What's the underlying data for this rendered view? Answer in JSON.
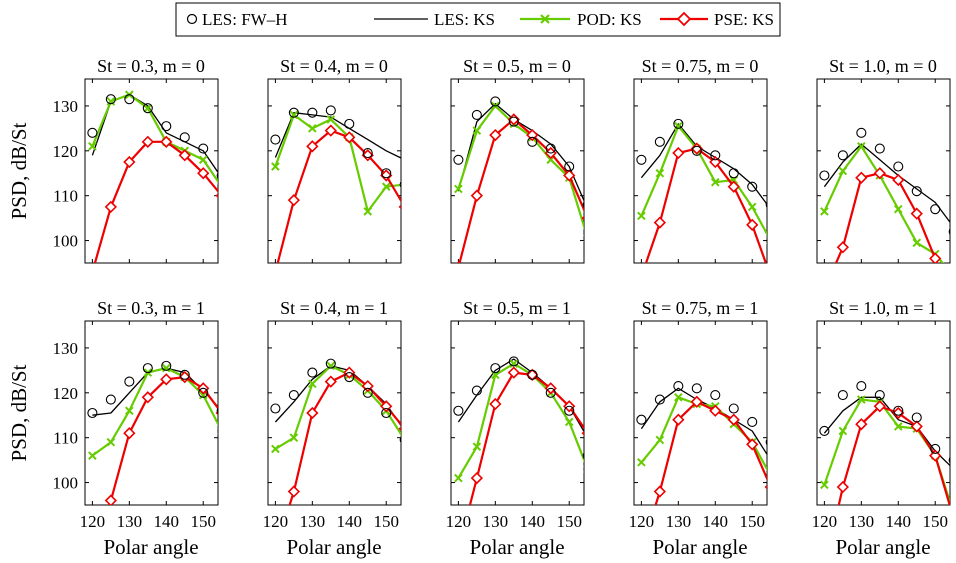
{
  "legend": {
    "entries": [
      {
        "label": "LES: FW–H",
        "key": "les_fwh"
      },
      {
        "label": "LES: KS",
        "key": "les_ks"
      },
      {
        "label": "POD: KS",
        "key": "pod_ks"
      },
      {
        "label": "PSE: KS",
        "key": "pse_ks"
      }
    ]
  },
  "colors": {
    "les_fwh": "#000000",
    "les_ks": "#000000",
    "pod_ks": "#66cc00",
    "pse_ks": "#ee0000"
  },
  "chart_data": {
    "type": "line",
    "xlabel": "Polar angle",
    "ylabel": "PSD, dB/St",
    "xlim": [
      118,
      154
    ],
    "ylim": [
      95,
      136
    ],
    "xticks": [
      120,
      130,
      140,
      150
    ],
    "yticks": [
      100,
      110,
      120,
      130
    ],
    "grid": false,
    "legend_position": "top",
    "panels": [
      {
        "title": "St = 0.3, m = 0",
        "row": 0,
        "col": 0,
        "les_fwh": {
          "x": [
            120,
            125,
            130,
            135,
            140,
            145,
            150,
            155
          ],
          "y": [
            124,
            131.5,
            131.5,
            129.5,
            125.5,
            123,
            120.5,
            114.5
          ]
        },
        "les_ks": {
          "x": [
            120,
            125,
            130,
            135,
            140,
            145,
            150,
            155
          ],
          "y": [
            119,
            131,
            132.5,
            130,
            124,
            122,
            120,
            114
          ]
        },
        "pod_ks": {
          "x": [
            120,
            125,
            130,
            135,
            140,
            145,
            150,
            155
          ],
          "y": [
            121,
            131,
            132.5,
            129.5,
            122,
            120,
            118,
            112
          ]
        },
        "pse_ks": {
          "x": [
            120,
            125,
            130,
            135,
            140,
            145,
            150,
            155
          ],
          "y": [
            93,
            107.5,
            117.5,
            122,
            122,
            119,
            115,
            110
          ]
        }
      },
      {
        "title": "St = 0.4, m = 0",
        "row": 0,
        "col": 1,
        "les_fwh": {
          "x": [
            120,
            125,
            130,
            135,
            140,
            145,
            150,
            155
          ],
          "y": [
            122.5,
            128.5,
            128.5,
            129,
            126,
            119.5,
            115,
            112.5
          ]
        },
        "les_ks": {
          "x": [
            120,
            125,
            130,
            135,
            140,
            145,
            150,
            155
          ],
          "y": [
            118.5,
            128.5,
            128,
            127.5,
            125,
            122.5,
            120,
            118
          ]
        },
        "pod_ks": {
          "x": [
            120,
            125,
            130,
            135,
            140,
            145,
            150,
            155
          ],
          "y": [
            116.5,
            128,
            125,
            127,
            123,
            106.5,
            112,
            112.5
          ]
        },
        "pse_ks": {
          "x": [
            120,
            125,
            130,
            135,
            140,
            145,
            150,
            155
          ],
          "y": [
            93,
            109,
            121,
            124.5,
            123,
            119,
            114.5,
            107.5
          ]
        }
      },
      {
        "title": "St = 0.5, m = 0",
        "row": 0,
        "col": 2,
        "les_fwh": {
          "x": [
            120,
            125,
            130,
            135,
            140,
            145,
            150,
            155
          ],
          "y": [
            118,
            128,
            131,
            126.5,
            122,
            120.5,
            116.5,
            108
          ]
        },
        "les_ks": {
          "x": [
            120,
            125,
            130,
            135,
            140,
            145,
            150,
            155
          ],
          "y": [
            111,
            126.5,
            130.5,
            127,
            124.5,
            121.5,
            116.5,
            107
          ]
        },
        "pod_ks": {
          "x": [
            120,
            125,
            130,
            135,
            140,
            145,
            150,
            155
          ],
          "y": [
            111.5,
            124.5,
            130,
            126,
            123,
            118,
            114,
            100.5
          ]
        },
        "pse_ks": {
          "x": [
            120,
            125,
            130,
            135,
            140,
            145,
            150,
            155
          ],
          "y": [
            94,
            110,
            123.5,
            127,
            123.5,
            119.5,
            114.5,
            105
          ]
        }
      },
      {
        "title": "St = 0.75, m = 0",
        "row": 0,
        "col": 3,
        "les_fwh": {
          "x": [
            120,
            125,
            130,
            135,
            140,
            145,
            150,
            155
          ],
          "y": [
            118,
            122,
            126,
            120,
            119,
            115,
            112,
            108
          ]
        },
        "les_ks": {
          "x": [
            120,
            125,
            130,
            135,
            140,
            145,
            150,
            155
          ],
          "y": [
            114,
            119,
            126,
            121,
            118.5,
            116,
            112.5,
            107
          ]
        },
        "pod_ks": {
          "x": [
            120,
            125,
            130,
            135,
            140,
            145,
            150,
            155
          ],
          "y": [
            105.5,
            115,
            125.5,
            120.5,
            113,
            113.5,
            107.5,
            100
          ]
        },
        "pse_ks": {
          "x": [
            120,
            125,
            130,
            135,
            140,
            145,
            150,
            155
          ],
          "y": [
            92,
            104,
            119.5,
            120.5,
            117.5,
            112,
            103.5,
            92
          ]
        }
      },
      {
        "title": "St = 1.0, m = 0",
        "row": 0,
        "col": 4,
        "les_fwh": {
          "x": [
            120,
            125,
            130,
            135,
            140,
            145,
            150,
            155
          ],
          "y": [
            114.5,
            119,
            124,
            120.5,
            116.5,
            111,
            107,
            102
          ]
        },
        "les_ks": {
          "x": [
            120,
            125,
            130,
            135,
            140,
            145,
            150,
            155
          ],
          "y": [
            112,
            117.5,
            121.5,
            118,
            114.5,
            111.5,
            108.5,
            103
          ]
        },
        "pod_ks": {
          "x": [
            120,
            125,
            130,
            135,
            140,
            145,
            150,
            155
          ],
          "y": [
            106.5,
            115.5,
            121,
            114.5,
            107,
            99.5,
            97,
            92
          ]
        },
        "pse_ks": {
          "x": [
            120,
            125,
            130,
            135,
            140,
            145,
            150,
            155
          ],
          "y": [
            89,
            98.5,
            114,
            115,
            113.5,
            106,
            96,
            86
          ]
        }
      },
      {
        "title": "St = 0.3, m = 1",
        "row": 1,
        "col": 0,
        "les_fwh": {
          "x": [
            120,
            125,
            130,
            135,
            140,
            145,
            150,
            155
          ],
          "y": [
            115.5,
            118.5,
            122.5,
            125.5,
            126,
            124,
            120,
            116
          ]
        },
        "les_ks": {
          "x": [
            120,
            125,
            130,
            135,
            140,
            145,
            150,
            155
          ],
          "y": [
            115,
            115.5,
            120,
            124.5,
            125.5,
            124.5,
            120.5,
            116
          ]
        },
        "pod_ks": {
          "x": [
            120,
            125,
            130,
            135,
            140,
            145,
            150,
            155
          ],
          "y": [
            106,
            109,
            116,
            124.5,
            125.5,
            123.5,
            119.5,
            111.5
          ]
        },
        "pse_ks": {
          "x": [
            120,
            125,
            130,
            135,
            140,
            145,
            150,
            155
          ],
          "y": [
            86,
            96,
            111,
            119,
            123,
            123.5,
            121,
            115.5
          ]
        }
      },
      {
        "title": "St = 0.4, m = 1",
        "row": 1,
        "col": 1,
        "les_fwh": {
          "x": [
            120,
            125,
            130,
            135,
            140,
            145,
            150,
            155
          ],
          "y": [
            116.5,
            119.5,
            124.5,
            126.5,
            123.5,
            120,
            115.5,
            109.5
          ]
        },
        "les_ks": {
          "x": [
            120,
            125,
            130,
            135,
            140,
            145,
            150,
            155
          ],
          "y": [
            113.5,
            118,
            123,
            126,
            125,
            121.5,
            117.5,
            111.5
          ]
        },
        "pod_ks": {
          "x": [
            120,
            125,
            130,
            135,
            140,
            145,
            150,
            155
          ],
          "y": [
            107.5,
            110,
            122,
            126,
            124,
            120.5,
            116,
            109.5
          ]
        },
        "pse_ks": {
          "x": [
            120,
            125,
            130,
            135,
            140,
            145,
            150,
            155
          ],
          "y": [
            85,
            98,
            115.5,
            122.5,
            124.5,
            121.5,
            117,
            112
          ]
        }
      },
      {
        "title": "St = 0.5, m = 1",
        "row": 1,
        "col": 2,
        "les_fwh": {
          "x": [
            120,
            125,
            130,
            135,
            140,
            145,
            150,
            155
          ],
          "y": [
            116,
            120.5,
            125.5,
            127,
            124,
            120,
            116,
            106
          ]
        },
        "les_ks": {
          "x": [
            120,
            125,
            130,
            135,
            140,
            145,
            150,
            155
          ],
          "y": [
            113.5,
            119.5,
            125,
            127.5,
            124.5,
            121,
            117,
            110
          ]
        },
        "pod_ks": {
          "x": [
            120,
            125,
            130,
            135,
            140,
            145,
            150,
            155
          ],
          "y": [
            101,
            108,
            124,
            126.5,
            124,
            120,
            113.5,
            103
          ]
        },
        "pse_ks": {
          "x": [
            120,
            125,
            130,
            135,
            140,
            145,
            150,
            155
          ],
          "y": [
            85,
            101,
            117.5,
            124.5,
            124,
            121,
            117,
            111
          ]
        }
      },
      {
        "title": "St = 0.75, m = 1",
        "row": 1,
        "col": 3,
        "les_fwh": {
          "x": [
            120,
            125,
            130,
            135,
            140,
            145,
            150,
            155
          ],
          "y": [
            114,
            118.5,
            121.5,
            121,
            119.5,
            116.5,
            113.5,
            109
          ]
        },
        "les_ks": {
          "x": [
            120,
            125,
            130,
            135,
            140,
            145,
            150,
            155
          ],
          "y": [
            112,
            118,
            121,
            118.5,
            116.5,
            114,
            111.5,
            105
          ]
        },
        "pod_ks": {
          "x": [
            120,
            125,
            130,
            135,
            140,
            145,
            150,
            155
          ],
          "y": [
            104.5,
            109.5,
            119,
            117.5,
            117,
            113,
            109,
            101.5
          ]
        },
        "pse_ks": {
          "x": [
            120,
            125,
            130,
            135,
            140,
            145,
            150,
            155
          ],
          "y": [
            85,
            98,
            114,
            118,
            116,
            114,
            108.5,
            99
          ]
        }
      },
      {
        "title": "St = 1.0, m = 1",
        "row": 1,
        "col": 4,
        "les_fwh": {
          "x": [
            120,
            125,
            130,
            135,
            140,
            145,
            150,
            155
          ],
          "y": [
            111.5,
            119.5,
            121.5,
            119.5,
            116,
            114.5,
            107.5,
            105
          ]
        },
        "les_ks": {
          "x": [
            120,
            125,
            130,
            135,
            140,
            145,
            150,
            155
          ],
          "y": [
            111,
            116,
            119,
            119,
            114,
            112.5,
            107,
            103
          ]
        },
        "pod_ks": {
          "x": [
            120,
            125,
            130,
            135,
            140,
            145,
            150,
            155
          ],
          "y": [
            99.5,
            111.5,
            118.5,
            118,
            112.5,
            112,
            106,
            93
          ]
        },
        "pse_ks": {
          "x": [
            120,
            125,
            130,
            135,
            140,
            145,
            150,
            155
          ],
          "y": [
            81,
            99,
            113,
            117,
            115.5,
            112.5,
            106,
            92
          ]
        }
      }
    ]
  }
}
